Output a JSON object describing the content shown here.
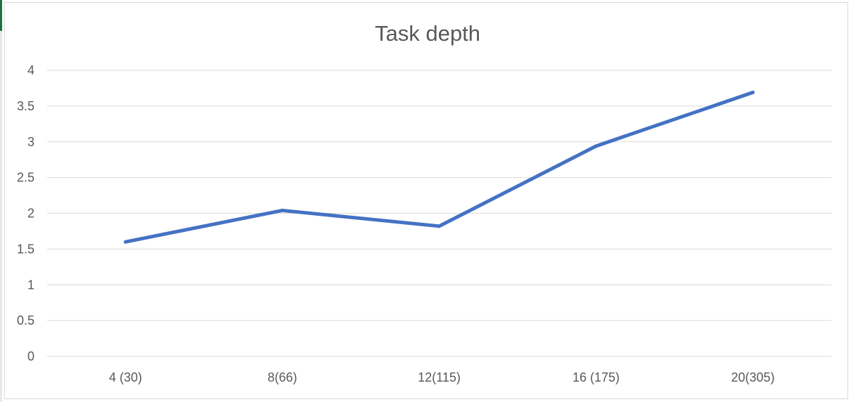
{
  "chart_data": {
    "type": "line",
    "title": "Task depth",
    "xlabel": "",
    "ylabel": "",
    "categories": [
      "4 (30)",
      "8(66)",
      "12(115)",
      "16 (175)",
      "20(305)"
    ],
    "series": [
      {
        "values": [
          1.6,
          2.04,
          1.82,
          2.94,
          3.69
        ],
        "color": "#4472c4"
      }
    ],
    "ylim": [
      0,
      4
    ],
    "yticks": [
      "0",
      "0.5",
      "1",
      "1.5",
      "2",
      "2.5",
      "3",
      "3.5",
      "4"
    ],
    "ytick_values": [
      0,
      0.5,
      1,
      1.5,
      2,
      2.5,
      3,
      3.5,
      4
    ],
    "grid": true,
    "legend": "none",
    "colors": {
      "gridline": "#d9d9d9",
      "text": "#595959"
    }
  }
}
